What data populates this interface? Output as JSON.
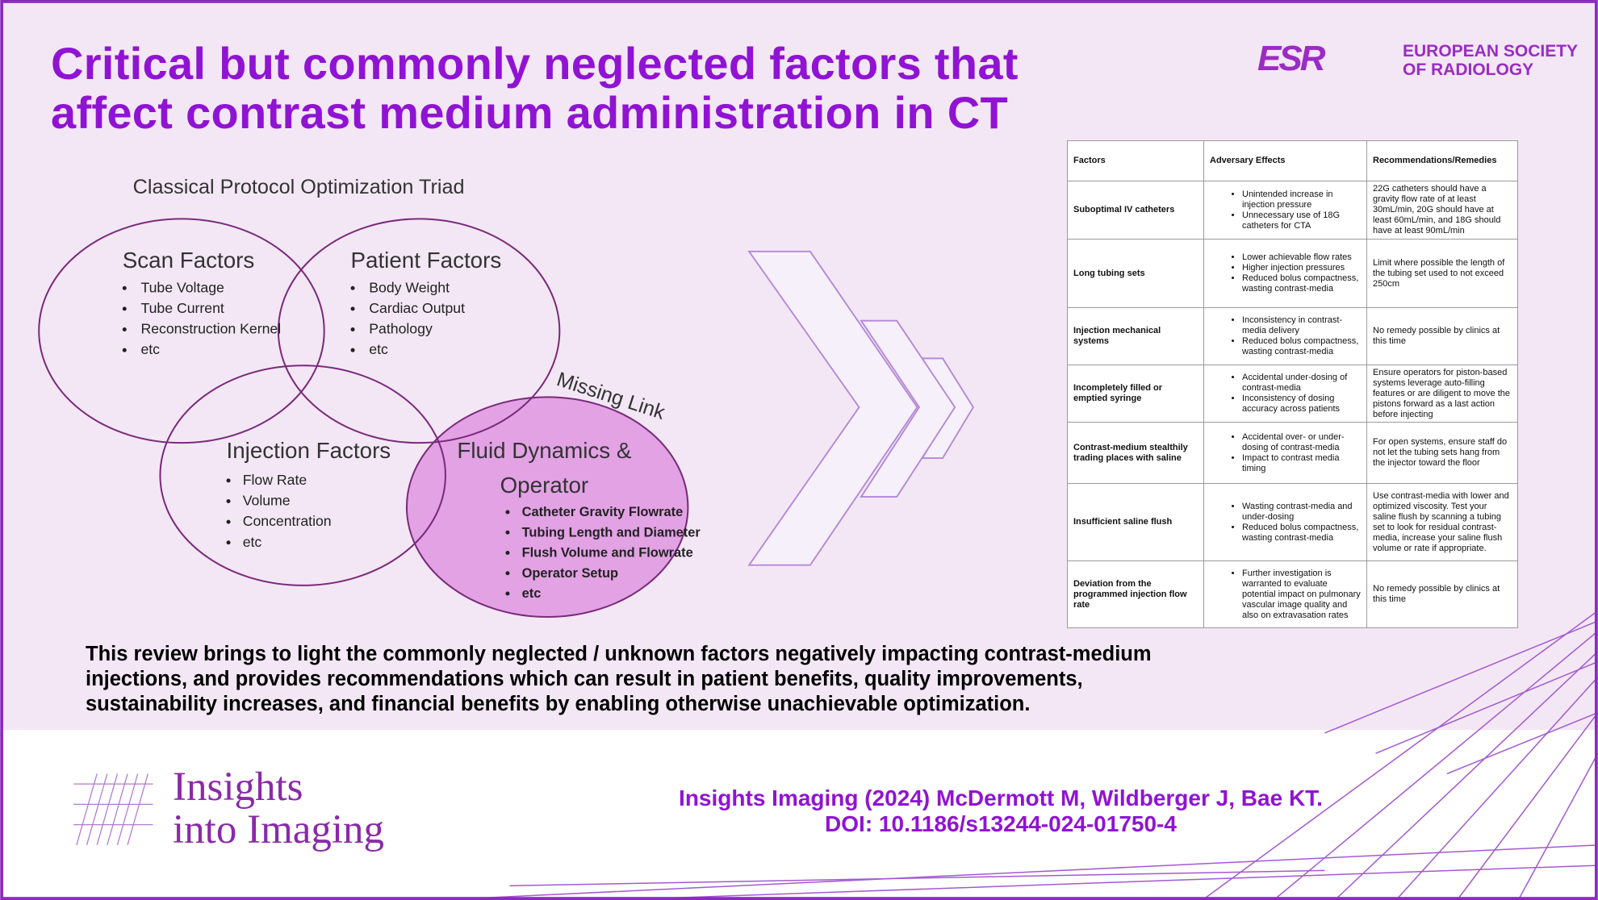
{
  "header": {
    "title": [
      "Critical but commonly neglected factors that",
      "affect contrast medium administration in CT"
    ],
    "society_logo": "ESR",
    "society": [
      "EUROPEAN SOCIETY",
      "OF RADIOLOGY"
    ]
  },
  "diagram": {
    "title": "Classical Protocol Optimization Triad",
    "missing_link": "Missing Link",
    "sets": [
      {
        "label": [
          "Scan Factors"
        ],
        "items": [
          "Tube Voltage",
          "Tube Current",
          "Reconstruction Kernel",
          "etc"
        ]
      },
      {
        "label": [
          "Patient Factors"
        ],
        "items": [
          "Body Weight",
          "Cardiac Output",
          "Pathology",
          "etc"
        ]
      },
      {
        "label": [
          "Injection Factors"
        ],
        "items": [
          "Flow Rate",
          "Volume",
          "Concentration",
          "etc"
        ]
      },
      {
        "label": [
          "Fluid Dynamics &",
          "Operator"
        ],
        "items": [
          "Catheter Gravity Flowrate",
          "Tubing Length and Diameter",
          "Flush Volume and Flowrate",
          "Operator Setup",
          "etc"
        ]
      }
    ]
  },
  "table": {
    "headers": [
      "Factors",
      "Adversary Effects",
      "Recommendations/Remedies"
    ],
    "rows": [
      [
        "Suboptimal IV catheters",
        [
          "Unintended increase in injection pressure",
          "Unnecessary use of 18G catheters for CTA"
        ],
        "22G catheters should have a gravity flow rate of at least 30mL/min, 20G should have at least 60mL/min, and 18G should have at least 90mL/min"
      ],
      [
        "Long tubing sets",
        [
          "Lower achievable flow rates",
          "Higher injection pressures",
          "Reduced bolus compactness, wasting contrast-media"
        ],
        "Limit where possible the length of the tubing set used to not exceed 250cm"
      ],
      [
        "Injection mechanical systems",
        [
          "Inconsistency in contrast-media delivery",
          "Reduced bolus compactness, wasting contrast-media"
        ],
        "No remedy possible by clinics at this time"
      ],
      [
        "Incompletely filled or emptied syringe",
        [
          "Accidental under-dosing of contrast-media",
          "Inconsistency of dosing accuracy across patients"
        ],
        "Ensure operators for piston-based systems leverage auto-filling features or are diligent to move the pistons forward as a last action before injecting"
      ],
      [
        "Contrast-medium stealthily trading places with saline",
        [
          "Accidental over- or under-dosing of contrast-media",
          "Impact to contrast media timing"
        ],
        "For open systems, ensure staff do not let the tubing sets hang from the injector toward the floor"
      ],
      [
        "Insufficient saline flush",
        [
          "Wasting contrast-media and under-dosing",
          "Reduced bolus compactness, wasting contrast-media"
        ],
        "Use contrast-media with lower and optimized viscosity.  Test your saline flush by scanning a tubing set to look for residual contrast-media, increase your saline flush volume or rate if appropriate."
      ],
      [
        "Deviation from the programmed injection flow rate",
        [
          "Further investigation is warranted to evaluate potential impact on pulmonary vascular image quality and also on extravasation rates"
        ],
        "No remedy possible by clinics at this time"
      ]
    ]
  },
  "summary": [
    "This review brings to light the commonly neglected / unknown factors negatively impacting contrast-medium",
    "injections, and provides recommendations which can result in patient benefits, quality improvements,",
    "sustainability increases, and financial benefits by enabling otherwise unachievable optimization."
  ],
  "journal": [
    "Insights",
    "into Imaging"
  ],
  "citation": [
    "Insights Imaging (2024) McDermott M, Wildberger J, Bae KT.",
    "DOI: 10.1186/s13244-024-01750-4"
  ]
}
